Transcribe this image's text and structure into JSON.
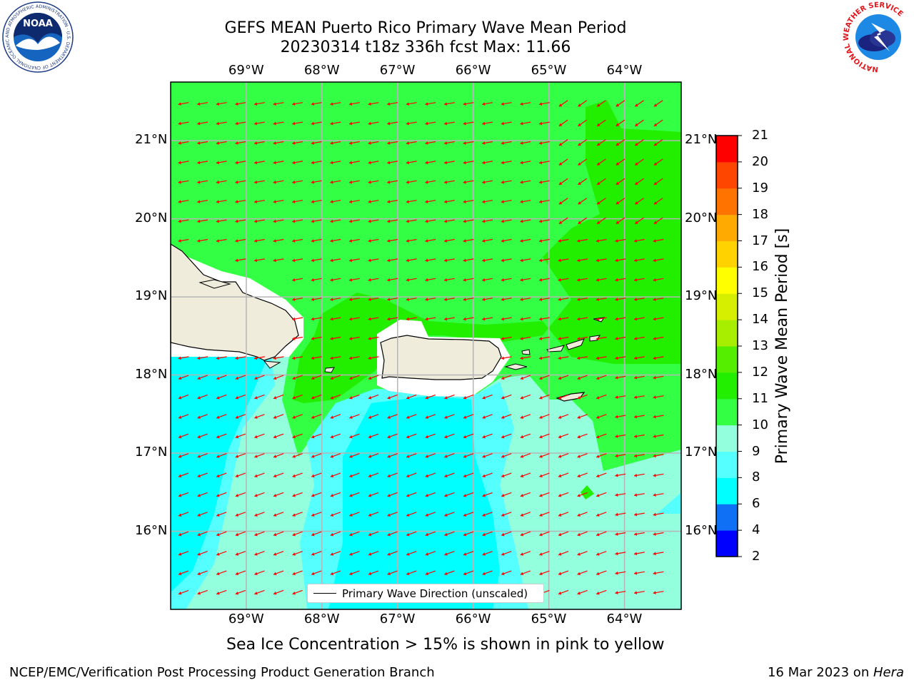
{
  "header": {
    "title_line1": "GEFS MEAN Puerto Rico Primary Wave Mean Period",
    "title_line2": "20230314 t18z 336h fcst   Max: 11.66"
  },
  "logos": {
    "noaa_text": "NOAA",
    "noaa_ring": "NATIONAL OCEANIC AND ATMOSPHERIC ADMINISTRATION · U.S. DEPARTMENT OF COMMERCE",
    "nws_ring": "NATIONAL WEATHER SERVICE"
  },
  "map": {
    "longitude_labels": [
      "69°W",
      "68°W",
      "67°W",
      "66°W",
      "65°W",
      "64°W"
    ],
    "latitude_labels": [
      "21°N",
      "20°N",
      "19°N",
      "18°N",
      "17°N",
      "16°N"
    ],
    "longitudes": [
      -69,
      -68,
      -67,
      -66,
      -65,
      -64
    ],
    "latitudes": [
      21,
      20,
      19,
      18,
      17,
      16
    ],
    "lon_range": [
      -70,
      -63.25
    ],
    "lat_range": [
      15,
      21.75
    ],
    "grid": true,
    "land_color": "#efecdc",
    "arrow_color": "#ff0000",
    "general_direction": "westward, turning northwestward in the south-east",
    "legend_text": "Primary Wave Direction (unscaled)"
  },
  "colorbar": {
    "label": "Primary Wave Mean Period [s]",
    "ticks": [
      "21",
      "20",
      "19",
      "18",
      "17",
      "16",
      "15",
      "14",
      "13",
      "12",
      "11",
      "10",
      "9",
      "8",
      "6",
      "4",
      "2"
    ],
    "levels": [
      2,
      4,
      6,
      8,
      9,
      10,
      11,
      12,
      13,
      14,
      15,
      16,
      17,
      18,
      19,
      20,
      21
    ],
    "colors": [
      "#0000ff",
      "#0f6ff5",
      "#00ffff",
      "#55ffff",
      "#94ffdd",
      "#33ff44",
      "#22ee00",
      "#55ee00",
      "#a8ee00",
      "#d6ee00",
      "#ffff00",
      "#ffd200",
      "#ffaa00",
      "#ff7300",
      "#ff4600",
      "#ff0000"
    ]
  },
  "footer": {
    "subtitle": "Sea Ice Concentration > 15% is shown in pink to yellow",
    "left": "NCEP/EMC/Verification Post Processing Product Generation Branch",
    "date": "16 Mar 2023 on ",
    "machine": "Hera"
  }
}
